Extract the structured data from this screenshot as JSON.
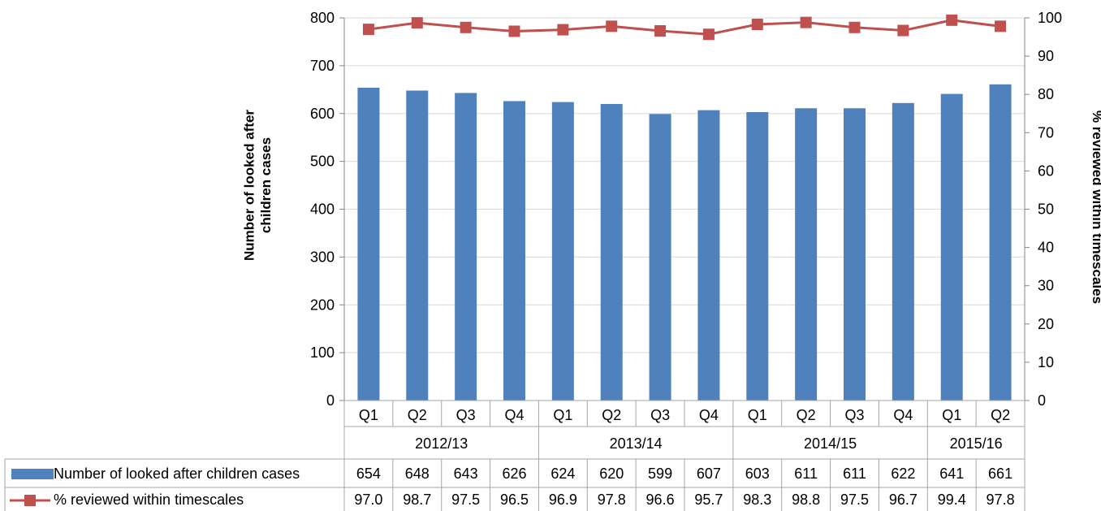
{
  "chart_data": {
    "type": "bar",
    "categories": [
      "Q1",
      "Q2",
      "Q3",
      "Q4",
      "Q1",
      "Q2",
      "Q3",
      "Q4",
      "Q1",
      "Q2",
      "Q3",
      "Q4",
      "Q1",
      "Q2"
    ],
    "groups": [
      {
        "label": "2012/13",
        "count": 4
      },
      {
        "label": "2013/14",
        "count": 4
      },
      {
        "label": "2014/15",
        "count": 4
      },
      {
        "label": "2015/16",
        "count": 2
      }
    ],
    "series": [
      {
        "name": "Number of looked after children cases",
        "type": "bar",
        "axis": "left",
        "color": "#4f81bd",
        "values": [
          654,
          648,
          643,
          626,
          624,
          620,
          599,
          607,
          603,
          611,
          611,
          622,
          641,
          661
        ],
        "labels": [
          "654",
          "648",
          "643",
          "626",
          "624",
          "620",
          "599",
          "607",
          "603",
          "611",
          "611",
          "622",
          "641",
          "661"
        ]
      },
      {
        "name": "% reviewed within timescales",
        "type": "line",
        "axis": "right",
        "color": "#c0504d",
        "values": [
          97.0,
          98.7,
          97.5,
          96.5,
          96.9,
          97.8,
          96.6,
          95.7,
          98.3,
          98.8,
          97.5,
          96.7,
          99.4,
          97.8
        ],
        "labels": [
          "97.0",
          "98.7",
          "97.5",
          "96.5",
          "96.9",
          "97.8",
          "96.6",
          "95.7",
          "98.3",
          "98.8",
          "97.5",
          "96.7",
          "99.4",
          "97.8"
        ]
      }
    ],
    "ylabel": "Number of looked after children cases",
    "ylabel_right": "% reviewed within timescales",
    "ylim": [
      0,
      800
    ],
    "yticks": [
      "0",
      "100",
      "200",
      "300",
      "400",
      "500",
      "600",
      "700",
      "800"
    ],
    "ylim_right": [
      0,
      100
    ],
    "yticks_right": [
      "0",
      "10",
      "20",
      "30",
      "40",
      "50",
      "60",
      "70",
      "80",
      "90",
      "100"
    ],
    "grid": true,
    "legend": "data-table"
  }
}
